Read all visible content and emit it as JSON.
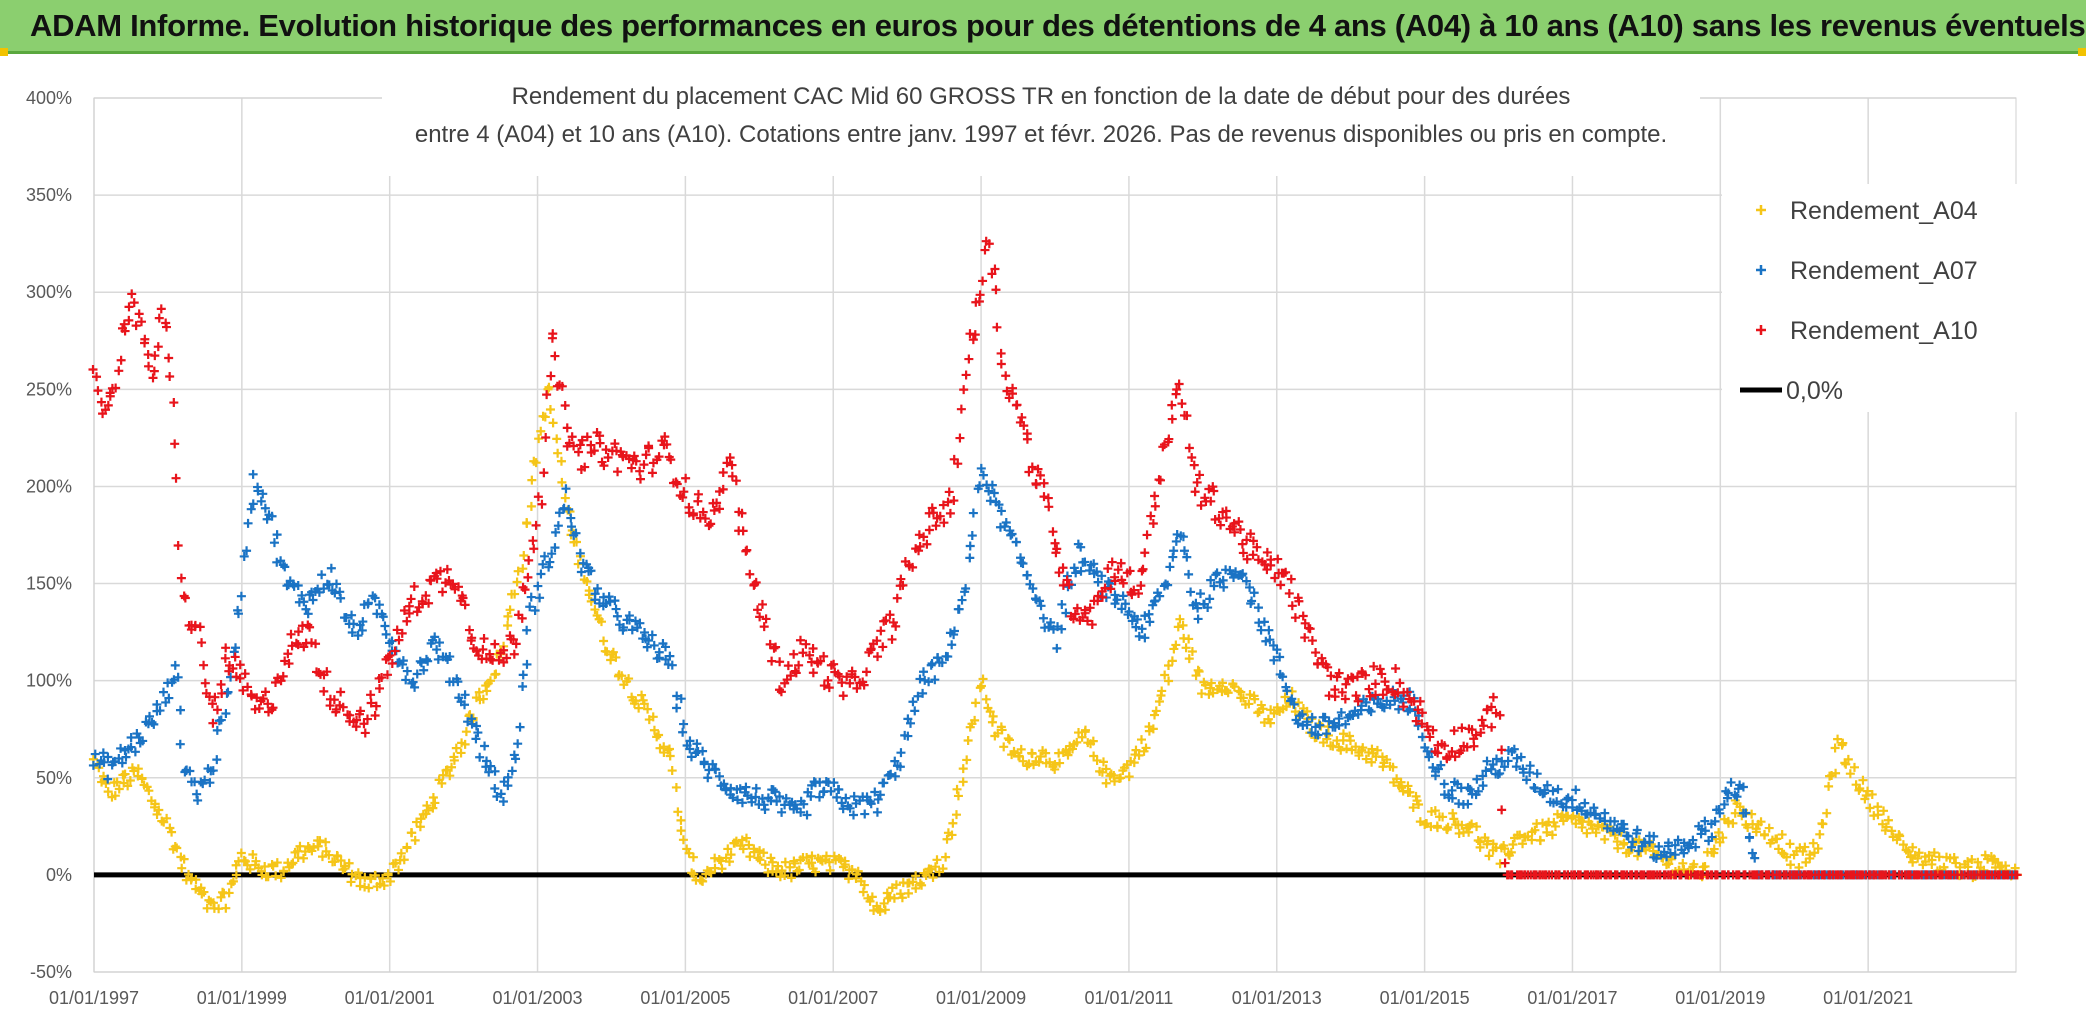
{
  "header": {
    "title": "ADAM Informe. Evolution historique des performances en euros pour des détentions de 4 ans (A04) à 10 ans (A10) sans les revenus éventuels"
  },
  "colors": {
    "header_bg": "#8bcf6f",
    "A04": "#f5c518",
    "A07": "#1a73c4",
    "A10": "#e8141b",
    "zero": "#000000"
  },
  "chart_data": {
    "type": "scatter",
    "title_lines": [
      "Rendement du placement CAC Mid 60 GROSS TR en fonction de la date de début pour des durées",
      "entre 4 (A04) et 10 ans (A10). Cotations entre janv. 1997 et févr. 2026. Pas de revenus disponibles ou pris en compte."
    ],
    "xlabel": "",
    "ylabel": "",
    "x_ticks": [
      "01/01/1997",
      "01/01/1999",
      "01/01/2001",
      "01/01/2003",
      "01/01/2005",
      "01/01/2007",
      "01/01/2009",
      "01/01/2011",
      "01/01/2013",
      "01/01/2015",
      "01/01/2017",
      "01/01/2019",
      "01/01/2021"
    ],
    "y_ticks": [
      "-50%",
      "0%",
      "50%",
      "100%",
      "150%",
      "200%",
      "250%",
      "300%",
      "350%",
      "400%"
    ],
    "y_tick_values": [
      -50,
      0,
      50,
      100,
      150,
      200,
      250,
      300,
      350,
      400
    ],
    "ylim": [
      -50,
      400
    ],
    "xlim": [
      1997.0,
      2023.0
    ],
    "grid": true,
    "legend_position": "top-right",
    "series": [
      {
        "name": "Rendement_A04",
        "marker": "plus",
        "points": [
          [
            1997.0,
            58
          ],
          [
            1997.2,
            42
          ],
          [
            1997.4,
            48
          ],
          [
            1997.6,
            52
          ],
          [
            1997.8,
            38
          ],
          [
            1998.0,
            25
          ],
          [
            1998.2,
            5
          ],
          [
            1998.4,
            -8
          ],
          [
            1998.6,
            -18
          ],
          [
            1998.8,
            -12
          ],
          [
            1999.0,
            10
          ],
          [
            1999.2,
            4
          ],
          [
            1999.5,
            2
          ],
          [
            1999.8,
            12
          ],
          [
            2000.1,
            14
          ],
          [
            2000.4,
            3
          ],
          [
            2000.7,
            -5
          ],
          [
            2001.0,
            0
          ],
          [
            2001.3,
            18
          ],
          [
            2001.6,
            40
          ],
          [
            2001.9,
            62
          ],
          [
            2002.2,
            90
          ],
          [
            2002.5,
            112
          ],
          [
            2002.8,
            165
          ],
          [
            2003.0,
            220
          ],
          [
            2003.15,
            250
          ],
          [
            2003.4,
            185
          ],
          [
            2003.6,
            160
          ],
          [
            2003.9,
            120
          ],
          [
            2004.2,
            100
          ],
          [
            2004.5,
            82
          ],
          [
            2004.8,
            60
          ],
          [
            2005.0,
            10
          ],
          [
            2005.2,
            -2
          ],
          [
            2005.5,
            8
          ],
          [
            2005.8,
            15
          ],
          [
            2006.1,
            5
          ],
          [
            2006.4,
            2
          ],
          [
            2006.7,
            6
          ],
          [
            2007.0,
            5
          ],
          [
            2007.3,
            2
          ],
          [
            2007.6,
            -18
          ],
          [
            2007.9,
            -8
          ],
          [
            2008.2,
            -2
          ],
          [
            2008.5,
            8
          ],
          [
            2008.8,
            60
          ],
          [
            2009.0,
            100
          ],
          [
            2009.2,
            75
          ],
          [
            2009.5,
            60
          ],
          [
            2009.8,
            62
          ],
          [
            2010.1,
            58
          ],
          [
            2010.4,
            72
          ],
          [
            2010.7,
            50
          ],
          [
            2011.0,
            55
          ],
          [
            2011.3,
            75
          ],
          [
            2011.5,
            100
          ],
          [
            2011.7,
            130
          ],
          [
            2012.0,
            95
          ],
          [
            2012.3,
            100
          ],
          [
            2012.6,
            90
          ],
          [
            2012.9,
            80
          ],
          [
            2013.2,
            90
          ],
          [
            2013.5,
            75
          ],
          [
            2013.8,
            70
          ],
          [
            2014.1,
            65
          ],
          [
            2014.4,
            60
          ],
          [
            2014.7,
            45
          ],
          [
            2015.0,
            30
          ],
          [
            2015.3,
            28
          ],
          [
            2015.6,
            25
          ],
          [
            2016.0,
            8
          ],
          [
            2016.3,
            20
          ],
          [
            2016.6,
            22
          ],
          [
            2016.9,
            28
          ],
          [
            2017.2,
            25
          ],
          [
            2017.5,
            20
          ],
          [
            2017.8,
            15
          ],
          [
            2018.1,
            10
          ],
          [
            2018.4,
            5
          ],
          [
            2018.7,
            0
          ],
          [
            2019.0,
            20
          ],
          [
            2019.2,
            35
          ],
          [
            2019.5,
            25
          ],
          [
            2019.8,
            18
          ],
          [
            2020.0,
            8
          ],
          [
            2020.3,
            12
          ],
          [
            2020.6,
            68
          ],
          [
            2020.9,
            45
          ],
          [
            2021.2,
            30
          ],
          [
            2021.5,
            12
          ],
          [
            2021.8,
            8
          ],
          [
            2022.1,
            5
          ],
          [
            2022.4,
            3
          ],
          [
            2022.7,
            8
          ],
          [
            2023.0,
            0
          ]
        ]
      },
      {
        "name": "Rendement_A07",
        "marker": "plus",
        "points": [
          [
            1997.0,
            60
          ],
          [
            1997.2,
            55
          ],
          [
            1997.4,
            62
          ],
          [
            1997.6,
            70
          ],
          [
            1997.8,
            80
          ],
          [
            1998.0,
            95
          ],
          [
            1998.1,
            110
          ],
          [
            1998.2,
            60
          ],
          [
            1998.4,
            42
          ],
          [
            1998.6,
            55
          ],
          [
            1998.8,
            90
          ],
          [
            1999.0,
            150
          ],
          [
            1999.1,
            190
          ],
          [
            1999.2,
            205
          ],
          [
            1999.4,
            180
          ],
          [
            1999.6,
            150
          ],
          [
            1999.9,
            140
          ],
          [
            2000.2,
            155
          ],
          [
            2000.5,
            125
          ],
          [
            2000.8,
            140
          ],
          [
            2001.1,
            115
          ],
          [
            2001.3,
            100
          ],
          [
            2001.6,
            120
          ],
          [
            2001.9,
            100
          ],
          [
            2002.2,
            70
          ],
          [
            2002.5,
            40
          ],
          [
            2002.7,
            60
          ],
          [
            2002.9,
            135
          ],
          [
            2003.2,
            170
          ],
          [
            2003.4,
            195
          ],
          [
            2003.6,
            160
          ],
          [
            2003.9,
            140
          ],
          [
            2004.2,
            130
          ],
          [
            2004.5,
            120
          ],
          [
            2004.8,
            110
          ],
          [
            2005.0,
            70
          ],
          [
            2005.3,
            55
          ],
          [
            2005.6,
            45
          ],
          [
            2005.9,
            40
          ],
          [
            2006.2,
            38
          ],
          [
            2006.5,
            30
          ],
          [
            2006.8,
            45
          ],
          [
            2007.0,
            42
          ],
          [
            2007.3,
            35
          ],
          [
            2007.6,
            38
          ],
          [
            2007.9,
            60
          ],
          [
            2008.2,
            100
          ],
          [
            2008.5,
            110
          ],
          [
            2008.8,
            150
          ],
          [
            2009.0,
            210
          ],
          [
            2009.2,
            190
          ],
          [
            2009.5,
            165
          ],
          [
            2009.8,
            140
          ],
          [
            2010.0,
            120
          ],
          [
            2010.3,
            165
          ],
          [
            2010.6,
            150
          ],
          [
            2010.9,
            140
          ],
          [
            2011.2,
            125
          ],
          [
            2011.5,
            150
          ],
          [
            2011.7,
            180
          ],
          [
            2011.9,
            135
          ],
          [
            2012.2,
            150
          ],
          [
            2012.5,
            160
          ],
          [
            2012.8,
            130
          ],
          [
            2013.0,
            110
          ],
          [
            2013.3,
            80
          ],
          [
            2013.6,
            75
          ],
          [
            2013.9,
            80
          ],
          [
            2014.2,
            85
          ],
          [
            2014.5,
            90
          ],
          [
            2014.8,
            90
          ],
          [
            2015.0,
            70
          ],
          [
            2015.3,
            45
          ],
          [
            2015.6,
            40
          ],
          [
            2015.9,
            55
          ],
          [
            2016.2,
            60
          ],
          [
            2016.5,
            48
          ],
          [
            2016.8,
            40
          ],
          [
            2017.1,
            38
          ],
          [
            2017.4,
            30
          ],
          [
            2017.7,
            22
          ],
          [
            2018.0,
            15
          ],
          [
            2018.3,
            12
          ],
          [
            2018.6,
            18
          ],
          [
            2018.9,
            25
          ],
          [
            2019.1,
            45
          ],
          [
            2019.3,
            40
          ],
          [
            2019.5,
            0
          ],
          [
            2020.0,
            0
          ],
          [
            2021.0,
            0
          ],
          [
            2022.0,
            0
          ],
          [
            2023.0,
            0
          ]
        ]
      },
      {
        "name": "Rendement_A10",
        "marker": "plus",
        "points": [
          [
            1997.0,
            260
          ],
          [
            1997.1,
            245
          ],
          [
            1997.2,
            240
          ],
          [
            1997.35,
            270
          ],
          [
            1997.5,
            300
          ],
          [
            1997.65,
            275
          ],
          [
            1997.8,
            260
          ],
          [
            1997.95,
            290
          ],
          [
            1998.1,
            225
          ],
          [
            1998.2,
            140
          ],
          [
            1998.4,
            125
          ],
          [
            1998.6,
            80
          ],
          [
            1998.8,
            110
          ],
          [
            1999.0,
            100
          ],
          [
            1999.2,
            85
          ],
          [
            1999.4,
            90
          ],
          [
            1999.6,
            115
          ],
          [
            1999.9,
            125
          ],
          [
            2000.1,
            100
          ],
          [
            2000.4,
            85
          ],
          [
            2000.7,
            80
          ],
          [
            2001.0,
            110
          ],
          [
            2001.3,
            140
          ],
          [
            2001.6,
            150
          ],
          [
            2001.9,
            155
          ],
          [
            2002.1,
            125
          ],
          [
            2002.4,
            110
          ],
          [
            2002.7,
            120
          ],
          [
            2002.9,
            165
          ],
          [
            2003.05,
            200
          ],
          [
            2003.2,
            275
          ],
          [
            2003.35,
            240
          ],
          [
            2003.5,
            215
          ],
          [
            2003.8,
            220
          ],
          [
            2004.1,
            215
          ],
          [
            2004.4,
            210
          ],
          [
            2004.7,
            220
          ],
          [
            2004.9,
            205
          ],
          [
            2005.1,
            190
          ],
          [
            2005.4,
            185
          ],
          [
            2005.6,
            215
          ],
          [
            2005.8,
            170
          ],
          [
            2006.0,
            140
          ],
          [
            2006.3,
            100
          ],
          [
            2006.6,
            115
          ],
          [
            2006.9,
            105
          ],
          [
            2007.2,
            95
          ],
          [
            2007.5,
            110
          ],
          [
            2007.8,
            130
          ],
          [
            2008.0,
            155
          ],
          [
            2008.2,
            175
          ],
          [
            2008.4,
            185
          ],
          [
            2008.6,
            190
          ],
          [
            2008.8,
            260
          ],
          [
            2009.0,
            300
          ],
          [
            2009.1,
            335
          ],
          [
            2009.3,
            260
          ],
          [
            2009.5,
            240
          ],
          [
            2009.7,
            210
          ],
          [
            2009.9,
            190
          ],
          [
            2010.2,
            140
          ],
          [
            2010.5,
            135
          ],
          [
            2010.8,
            160
          ],
          [
            2011.1,
            145
          ],
          [
            2011.3,
            180
          ],
          [
            2011.5,
            225
          ],
          [
            2011.7,
            250
          ],
          [
            2011.9,
            200
          ],
          [
            2012.2,
            190
          ],
          [
            2012.5,
            175
          ],
          [
            2012.8,
            160
          ],
          [
            2013.1,
            155
          ],
          [
            2013.4,
            125
          ],
          [
            2013.7,
            100
          ],
          [
            2014.0,
            95
          ],
          [
            2014.3,
            100
          ],
          [
            2014.6,
            100
          ],
          [
            2014.9,
            85
          ],
          [
            2015.2,
            65
          ],
          [
            2015.5,
            70
          ],
          [
            2015.8,
            75
          ],
          [
            2016.0,
            90
          ],
          [
            2016.1,
            0
          ],
          [
            2017.0,
            0
          ],
          [
            2018.0,
            0
          ],
          [
            2019.0,
            0
          ],
          [
            2020.0,
            0
          ],
          [
            2021.0,
            0
          ],
          [
            2022.0,
            0
          ],
          [
            2023.0,
            0
          ]
        ]
      },
      {
        "name": "0,0%",
        "marker": "line",
        "points": [
          [
            1997.0,
            0
          ],
          [
            2023.0,
            0
          ]
        ]
      }
    ]
  }
}
